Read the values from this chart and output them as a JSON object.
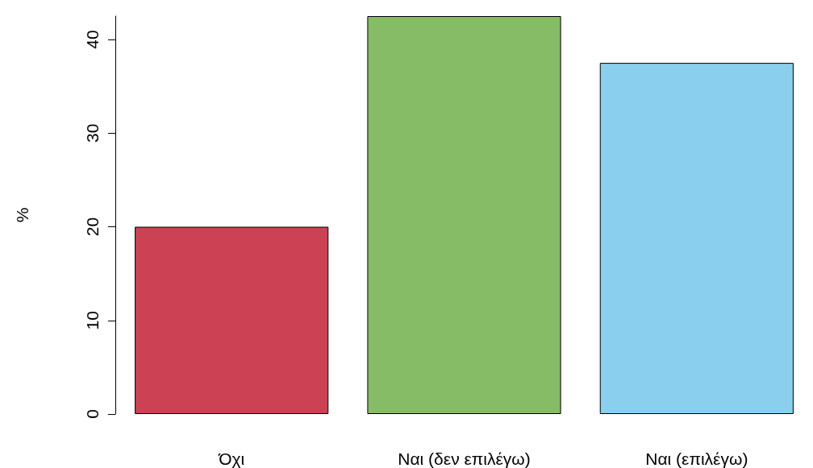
{
  "chart_data": {
    "type": "bar",
    "ylabel": "%",
    "categories": [
      "Όχι",
      "Ναι (δεν επιλέγω)",
      "Ναι (επιλέγω)"
    ],
    "values": [
      20,
      42.5,
      37.5
    ],
    "colors": [
      "#cc4254",
      "#87bc67",
      "#8acfee"
    ],
    "ylim": [
      0,
      42.5
    ],
    "yticks": [
      0,
      10,
      20,
      30,
      40
    ],
    "grid": false
  }
}
